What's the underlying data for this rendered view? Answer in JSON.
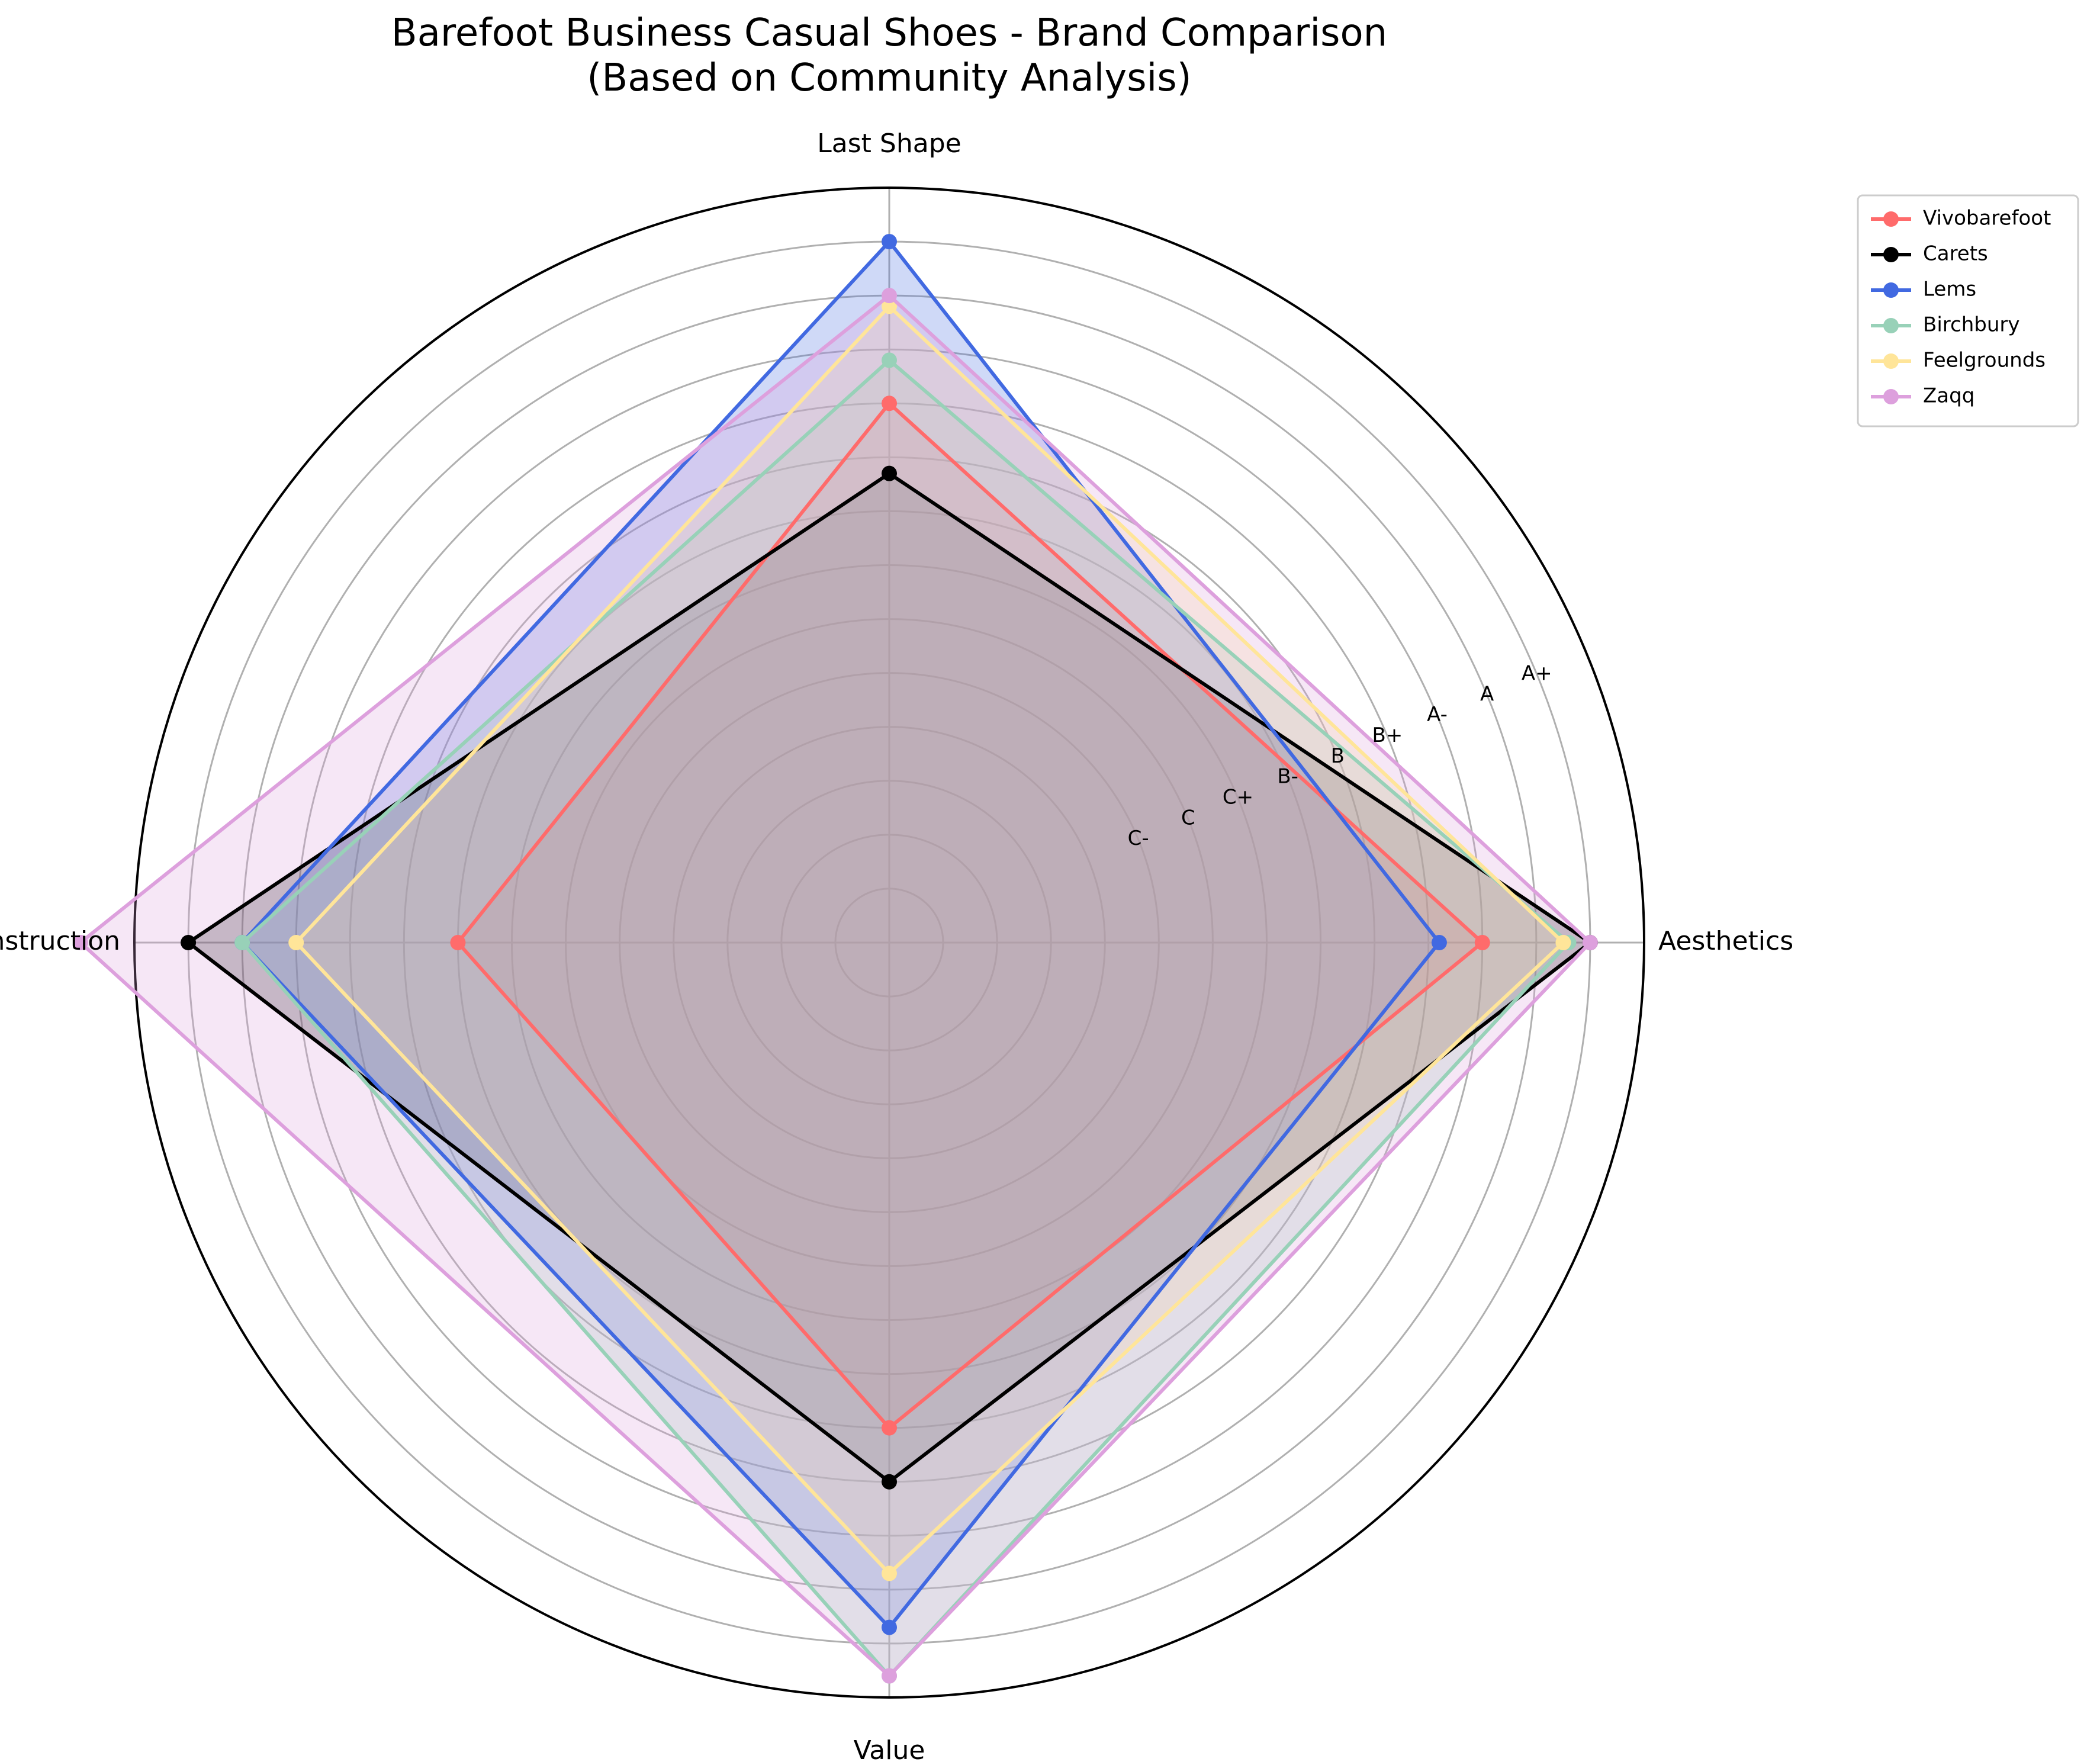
{
  "chart_data": {
    "type": "radar",
    "title": "Barefoot Business Casual Shoes - Brand Comparison",
    "subtitle": "(Based on Community Analysis)",
    "axes": [
      "Last Shape",
      "Aesthetics",
      "Value",
      "Construction"
    ],
    "grade_ticks": [
      "C-",
      "C",
      "C+",
      "B-",
      "B",
      "B+",
      "A-",
      "A",
      "A+"
    ],
    "grade_scale_note": "C- = 1 ... A+ = 9 (radial value)",
    "rlim": [
      -4,
      10
    ],
    "grid": true,
    "legend_position": "outside-top-right",
    "series": [
      {
        "name": "Vivobarefoot",
        "color": "#ff6b6b",
        "values": [
          6,
          7,
          5,
          4
        ]
      },
      {
        "name": "Carets",
        "color": "#000000",
        "values": [
          4.7,
          9,
          6,
          9
        ]
      },
      {
        "name": "Lems",
        "color": "#4169e1",
        "values": [
          9,
          6.2,
          8.7,
          8
        ]
      },
      {
        "name": "Birchbury",
        "color": "#98d1b8",
        "values": [
          6.8,
          8.6,
          9.6,
          8
        ]
      },
      {
        "name": "Feelgrounds",
        "color": "#ffe599",
        "values": [
          7.8,
          8.5,
          7.7,
          7
        ]
      },
      {
        "name": "Zaqq",
        "color": "#dda0dd",
        "values": [
          8,
          9,
          9.6,
          11
        ]
      }
    ]
  }
}
